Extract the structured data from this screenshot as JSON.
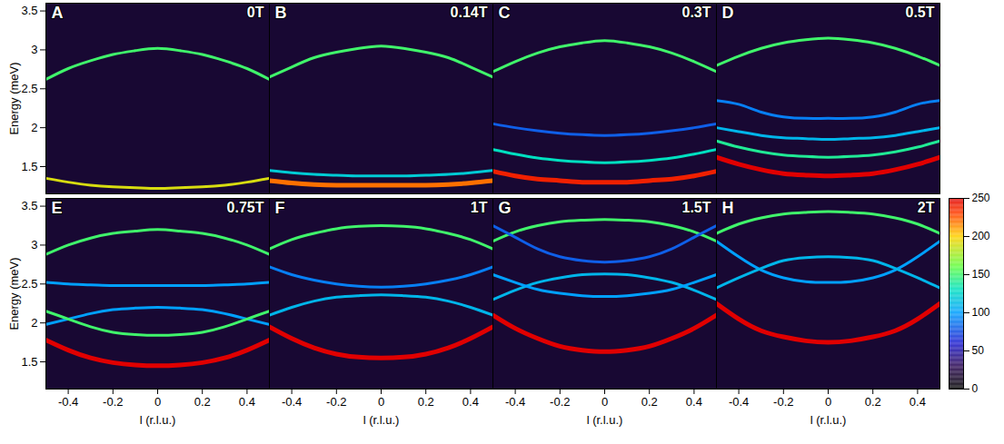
{
  "chart_data": {
    "type": "line",
    "xlabel": "l (r.l.u.)",
    "ylabel": "Energy (meV)",
    "xlim": [
      -0.5,
      0.5
    ],
    "ylim": [
      1.15,
      3.6
    ],
    "xticks": [
      -0.4,
      -0.2,
      0,
      0.2,
      0.4
    ],
    "yticks": [
      1.5,
      2,
      2.5,
      3,
      3.5
    ],
    "x": [
      -0.5,
      -0.4,
      -0.3,
      -0.2,
      -0.1,
      0,
      0.1,
      0.2,
      0.3,
      0.4,
      0.5
    ],
    "colorbar": {
      "range": [
        0,
        250
      ],
      "ticks": [
        0,
        50,
        100,
        150,
        200,
        250
      ]
    },
    "panels": [
      {
        "letter": "A",
        "title": "0T",
        "tick_labels": "y",
        "series": [
          {
            "intensity": 150,
            "values": [
              2.62,
              2.76,
              2.86,
              2.94,
              2.99,
              3.02,
              2.99,
              2.94,
              2.86,
              2.76,
              2.62
            ]
          },
          {
            "intensity": 190,
            "values": [
              1.35,
              1.3,
              1.26,
              1.24,
              1.23,
              1.22,
              1.23,
              1.24,
              1.26,
              1.3,
              1.35
            ]
          }
        ]
      },
      {
        "letter": "B",
        "title": "0.14T",
        "tick_labels": false,
        "series": [
          {
            "intensity": 150,
            "values": [
              2.65,
              2.78,
              2.9,
              2.97,
              3.02,
              3.05,
              3.02,
              2.97,
              2.9,
              2.78,
              2.65
            ]
          },
          {
            "intensity": 120,
            "values": [
              1.45,
              1.42,
              1.4,
              1.39,
              1.38,
              1.38,
              1.38,
              1.39,
              1.4,
              1.42,
              1.45
            ]
          },
          {
            "intensity": 220,
            "values": [
              1.32,
              1.29,
              1.27,
              1.26,
              1.26,
              1.26,
              1.26,
              1.26,
              1.27,
              1.29,
              1.32
            ]
          }
        ]
      },
      {
        "letter": "C",
        "title": "0.3T",
        "tick_labels": false,
        "series": [
          {
            "intensity": 150,
            "values": [
              2.72,
              2.85,
              2.96,
              3.04,
              3.09,
              3.12,
              3.09,
              3.04,
              2.96,
              2.85,
              2.72
            ]
          },
          {
            "intensity": 80,
            "values": [
              2.05,
              2.0,
              1.96,
              1.93,
              1.91,
              1.9,
              1.91,
              1.93,
              1.96,
              2.0,
              2.05
            ]
          },
          {
            "intensity": 130,
            "values": [
              1.72,
              1.66,
              1.61,
              1.58,
              1.56,
              1.55,
              1.56,
              1.58,
              1.61,
              1.66,
              1.72
            ]
          },
          {
            "intensity": 240,
            "values": [
              1.44,
              1.38,
              1.34,
              1.32,
              1.3,
              1.3,
              1.3,
              1.32,
              1.34,
              1.38,
              1.44
            ]
          }
        ]
      },
      {
        "letter": "D",
        "title": "0.5T",
        "tick_labels": false,
        "series": [
          {
            "intensity": 150,
            "values": [
              2.8,
              2.92,
              3.02,
              3.09,
              3.13,
              3.15,
              3.13,
              3.09,
              3.02,
              2.92,
              2.8
            ]
          },
          {
            "intensity": 90,
            "values": [
              2.35,
              2.3,
              2.2,
              2.14,
              2.12,
              2.12,
              2.12,
              2.14,
              2.2,
              2.3,
              2.35
            ]
          },
          {
            "intensity": 110,
            "values": [
              2.0,
              1.95,
              1.9,
              1.87,
              1.86,
              1.85,
              1.86,
              1.87,
              1.9,
              1.95,
              2.0
            ]
          },
          {
            "intensity": 140,
            "values": [
              1.83,
              1.75,
              1.69,
              1.65,
              1.63,
              1.62,
              1.63,
              1.65,
              1.69,
              1.75,
              1.83
            ]
          },
          {
            "intensity": 250,
            "values": [
              1.62,
              1.53,
              1.46,
              1.41,
              1.39,
              1.38,
              1.39,
              1.41,
              1.46,
              1.53,
              1.62
            ]
          }
        ]
      },
      {
        "letter": "E",
        "title": "0.75T",
        "tick_labels": true,
        "series": [
          {
            "intensity": 150,
            "values": [
              2.88,
              3.0,
              3.09,
              3.15,
              3.18,
              3.2,
              3.18,
              3.15,
              3.09,
              3.0,
              2.88
            ]
          },
          {
            "intensity": 100,
            "values": [
              2.52,
              2.5,
              2.49,
              2.48,
              2.48,
              2.48,
              2.48,
              2.48,
              2.49,
              2.5,
              2.52
            ]
          },
          {
            "intensity": 100,
            "values": [
              1.98,
              2.05,
              2.12,
              2.17,
              2.19,
              2.2,
              2.19,
              2.17,
              2.12,
              2.05,
              1.98
            ]
          },
          {
            "intensity": 150,
            "values": [
              2.15,
              2.05,
              1.95,
              1.88,
              1.85,
              1.84,
              1.85,
              1.88,
              1.95,
              2.05,
              2.15
            ]
          },
          {
            "intensity": 250,
            "values": [
              1.78,
              1.65,
              1.55,
              1.49,
              1.46,
              1.45,
              1.46,
              1.49,
              1.55,
              1.65,
              1.78
            ]
          }
        ]
      },
      {
        "letter": "F",
        "title": "1T",
        "tick_labels": "x",
        "series": [
          {
            "intensity": 150,
            "values": [
              2.95,
              3.07,
              3.15,
              3.21,
              3.24,
              3.25,
              3.24,
              3.21,
              3.15,
              3.07,
              2.95
            ]
          },
          {
            "intensity": 90,
            "values": [
              2.72,
              2.62,
              2.55,
              2.5,
              2.47,
              2.46,
              2.47,
              2.5,
              2.55,
              2.62,
              2.72
            ]
          },
          {
            "intensity": 110,
            "values": [
              2.1,
              2.2,
              2.28,
              2.33,
              2.35,
              2.36,
              2.35,
              2.33,
              2.28,
              2.2,
              2.1
            ]
          },
          {
            "intensity": 250,
            "values": [
              1.95,
              1.8,
              1.68,
              1.6,
              1.56,
              1.55,
              1.56,
              1.6,
              1.68,
              1.8,
              1.95
            ]
          }
        ]
      },
      {
        "letter": "G",
        "title": "1.5T",
        "tick_labels": "x",
        "series": [
          {
            "intensity": 150,
            "values": [
              3.05,
              3.17,
              3.25,
              3.3,
              3.32,
              3.33,
              3.32,
              3.3,
              3.25,
              3.17,
              3.05
            ]
          },
          {
            "intensity": 80,
            "values": [
              3.25,
              3.1,
              2.95,
              2.85,
              2.8,
              2.78,
              2.8,
              2.85,
              2.95,
              3.1,
              3.25
            ]
          },
          {
            "intensity": 110,
            "values": [
              2.3,
              2.42,
              2.52,
              2.58,
              2.62,
              2.63,
              2.62,
              2.58,
              2.52,
              2.42,
              2.3
            ]
          },
          {
            "intensity": 100,
            "values": [
              2.62,
              2.52,
              2.43,
              2.38,
              2.35,
              2.34,
              2.35,
              2.38,
              2.43,
              2.52,
              2.62
            ]
          },
          {
            "intensity": 250,
            "values": [
              2.1,
              1.93,
              1.8,
              1.7,
              1.65,
              1.63,
              1.65,
              1.7,
              1.8,
              1.93,
              2.1
            ]
          }
        ]
      },
      {
        "letter": "H",
        "title": "2T",
        "tick_labels": "x",
        "series": [
          {
            "intensity": 150,
            "values": [
              3.15,
              3.27,
              3.35,
              3.4,
              3.42,
              3.43,
              3.42,
              3.4,
              3.35,
              3.27,
              3.15
            ]
          },
          {
            "intensity": 100,
            "values": [
              3.05,
              2.85,
              2.68,
              2.58,
              2.53,
              2.52,
              2.53,
              2.58,
              2.68,
              2.85,
              3.05
            ]
          },
          {
            "intensity": 110,
            "values": [
              2.45,
              2.58,
              2.7,
              2.8,
              2.84,
              2.85,
              2.84,
              2.8,
              2.7,
              2.58,
              2.45
            ]
          },
          {
            "intensity": 250,
            "values": [
              2.25,
              2.05,
              1.9,
              1.82,
              1.77,
              1.75,
              1.77,
              1.82,
              1.9,
              2.05,
              2.25
            ]
          }
        ]
      }
    ]
  }
}
